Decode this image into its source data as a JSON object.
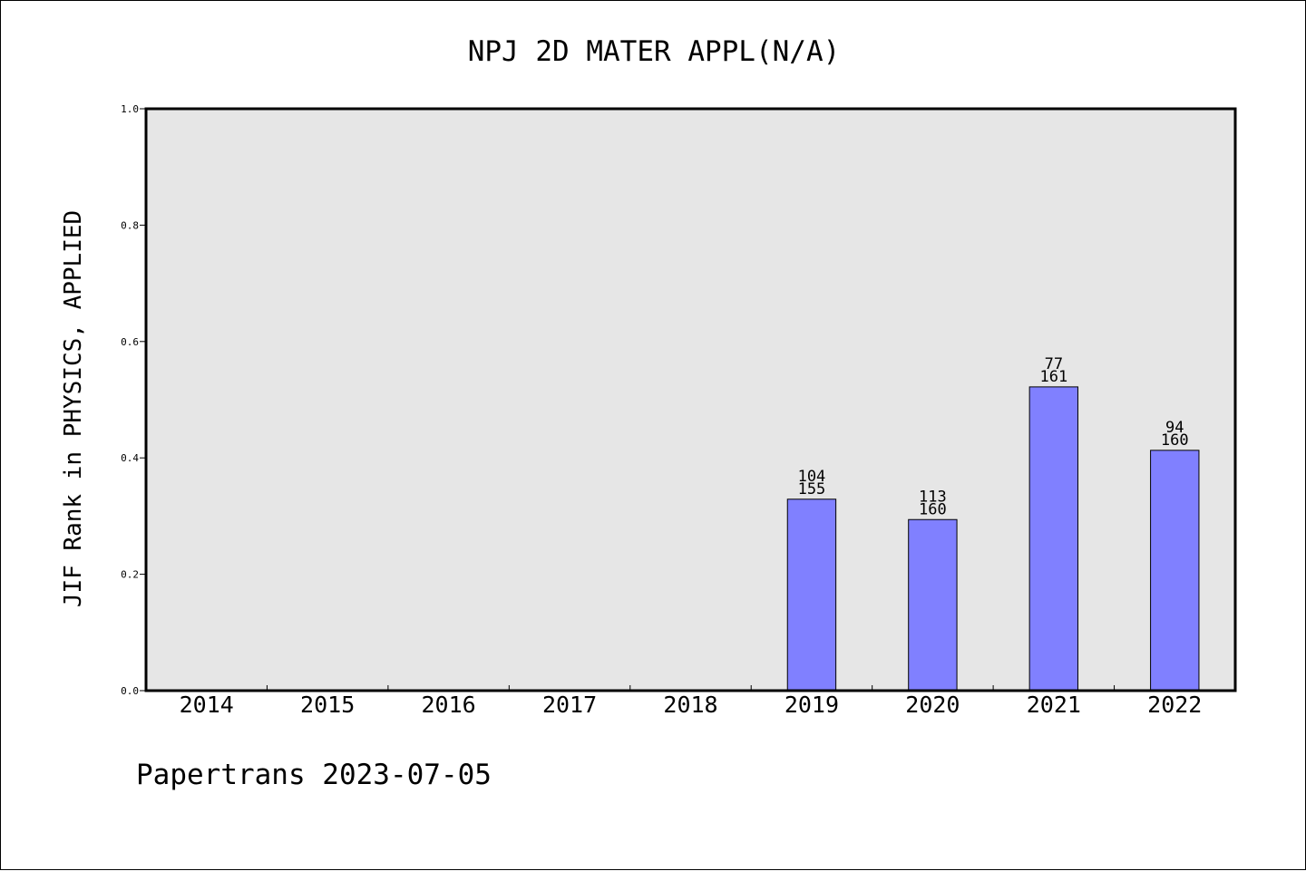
{
  "chart_data": {
    "type": "bar",
    "title": "NPJ 2D MATER APPL(N/A)",
    "xlabel": "",
    "ylabel": "JIF Rank in PHYSICS, APPLIED",
    "ylim": [
      0,
      1.0
    ],
    "yticks": [
      "0.0",
      "0.2",
      "0.4",
      "0.6",
      "0.8",
      "1.0"
    ],
    "categories": [
      "2014",
      "2015",
      "2016",
      "2017",
      "2018",
      "2019",
      "2020",
      "2021",
      "2022"
    ],
    "values": [
      null,
      null,
      null,
      null,
      null,
      0.329,
      0.294,
      0.522,
      0.413
    ],
    "rank": [
      null,
      null,
      null,
      null,
      null,
      "104",
      "113",
      "77",
      "94"
    ],
    "total": [
      null,
      null,
      null,
      null,
      null,
      "155",
      "160",
      "161",
      "160"
    ],
    "bar_color": "#8080ff",
    "plot_background": "#e6e6e6",
    "grid": false,
    "legend": "none"
  },
  "footer": "Papertrans 2023-07-05"
}
